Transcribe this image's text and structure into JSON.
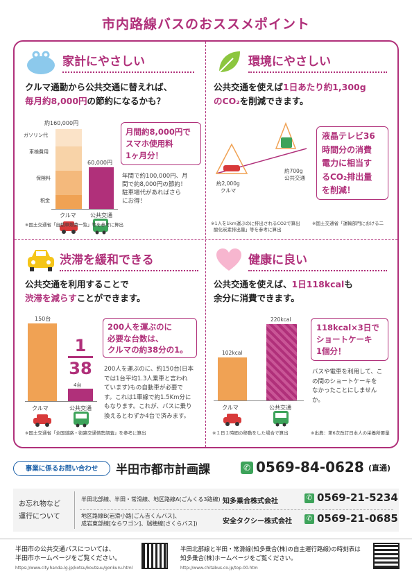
{
  "title": "市内路線バスのおススメポイント",
  "p1": {
    "title": "家計にやさしい",
    "line1": "クルマ通勤から公共交通に替えれば、",
    "line2_pink": "毎月約8,000円",
    "line2_rest": "の節約になるかも？",
    "car_total": "約160,000円",
    "car_parts": [
      "ガソリン代",
      "車検費用",
      "保険料",
      "税金"
    ],
    "bus_total": "60,000円",
    "car_label": "クルマ",
    "bus_label": "公共交通",
    "box_lines": [
      "月間約8,000円で",
      "スマホ使用料",
      "1ヶ月分！"
    ],
    "detail": [
      "年間で約100,000円、月",
      "間で約8,000円の節約！",
      "駐車場代があればさら",
      "にお得！"
    ],
    "note": "※国土交通省「自動車燃費一覧」等を参考に算出"
  },
  "p2": {
    "title": "環境にやさしい",
    "line1_pre": "公共交通を使えば",
    "line1_pink": "1日あたり約1,300g",
    "line2_pink": "のCO₂",
    "line2_rest": "を削減できます。",
    "car_val": "約2,000g",
    "car_label": "クルマ",
    "bus_val": "約700g",
    "bus_label": "公共交通",
    "box_lines": [
      "液晶テレビ36",
      "時間分の消費",
      "電力に相当す",
      "るCO₂排出量",
      "を削減！"
    ],
    "note1": "※1人を1km運ぶのに排出されるCO2で算出",
    "note1b": "酸化炭素排出量」等を参考に算出",
    "note2": "※国土交通省「運輸部門における二"
  },
  "p3": {
    "title": "渋滞を緩和できる",
    "line1": "公共交通を利用することで",
    "line2_pink": "渋滞を減らす",
    "line2_rest": "ことができます。",
    "car_val": "150台",
    "bus_val": "4台",
    "car_label": "クルマ",
    "bus_label": "公共交通",
    "frac_num": "1",
    "frac_den": "38",
    "box_lines": [
      "200人を運ぶのに",
      "必要な台数は、",
      "クルマの約38分の1。"
    ],
    "detail": [
      "200人を運ぶのに、約150台(日本",
      "では1台平均1.3人乗車と言われ",
      "ています)もの自動車が必要で",
      "す。これは1車線で約1.5Km分に",
      "もなります。これが、バスに乗り",
      "換えるとわずか4台で済みます。"
    ],
    "note": "※国土交通省「全国道路・街路交通情勢調査」を参考に算出"
  },
  "p4": {
    "title": "健康に良い",
    "line1_pre": "公共交通を使えば、",
    "line1_pink": "1日118kcal",
    "line1_post": "も",
    "line2": "余分に消費できます。",
    "car_val": "102kcal",
    "bus_val": "220kcal",
    "car_label": "クルマ",
    "bus_label": "公共交通",
    "box_lines": [
      "118kcal×3日で",
      "ショートケーキ",
      "1個分！"
    ],
    "detail": [
      "バスや電車を利用して、こ",
      "の間のショートケーキを",
      "なかったことにしません",
      "か。"
    ],
    "note1": "※１日１時間の移動をした場合で算出",
    "note2": "※出典：第6次改訂日本人の栄養所要量"
  },
  "contact": {
    "tag": "事業に係るお問い合わせ",
    "dept": "半田市都市計画課",
    "phone": "0569-84-0628",
    "suffix": "(直通)"
  },
  "forgot": {
    "label1": "お忘れ物など",
    "label2": "運行について",
    "row1_routes": "半田北部線、半田・常滑線、地区路線A(ごんくる3路線)",
    "row1_company": "知多乗合株式会社",
    "row1_phone": "0569-21-5234",
    "row2_routes1": "地区路線B(岩滑小路[ごん吉くんバス]、",
    "row2_routes2": "成岩東部線[ならワゴン]、瑞穂線[さくらバス])",
    "row2_company": "安全タクシー株式会社",
    "row2_phone": "0569-21-0685"
  },
  "bottom": {
    "left1": "半田市の公共交通バスについては、",
    "left2": "半田市ホームページをご覧ください。",
    "left_url": "https://www.city.handa.lg.jp/kotsu/koutsuu/gonkuru.html",
    "right1": "半田北部線と半田・常滑線(知多乗合(株)の自主運行路線)の時刻表は",
    "right2": "知多乗合(株)ホームページをご覧ください。",
    "right_url": "http://www.chitabus.co.jp/top-00.htm"
  },
  "colors": {
    "accent": "#b0307a",
    "orange": "#f0a254",
    "green": "#3da35a",
    "red": "#d83a3a"
  }
}
